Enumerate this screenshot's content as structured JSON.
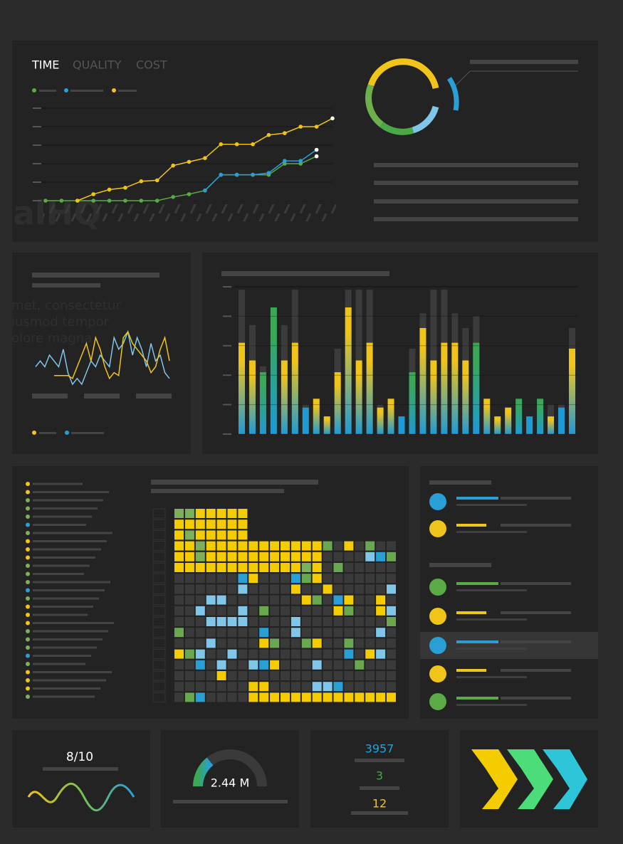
{
  "tabs": [
    "TIME",
    "QUALITY",
    "COST"
  ],
  "watermarks": [
    "alHQ",
    "met, consectetur",
    "iusmod tempor",
    "olore magna"
  ],
  "chart_data": [
    {
      "type": "line",
      "x": [
        0,
        1,
        2,
        3,
        4,
        5,
        6,
        7,
        8,
        9,
        10,
        11,
        12,
        13,
        14,
        15,
        16,
        17,
        18
      ],
      "xlim": [
        0,
        18
      ],
      "ylim": [
        0,
        5
      ],
      "yticks": [
        0,
        1,
        2,
        3,
        4,
        5
      ],
      "grid": true,
      "series": [
        {
          "color": "#5aaa46",
          "values": [
            0,
            0,
            0,
            0,
            0,
            0,
            0,
            0,
            0.2,
            0.35,
            0.55,
            1.4,
            1.4,
            1.4,
            1.4,
            2.0,
            2.0,
            2.4,
            null
          ]
        },
        {
          "color": "#2a9fd6",
          "values": [
            null,
            null,
            null,
            null,
            null,
            null,
            null,
            null,
            null,
            null,
            0.55,
            1.4,
            1.4,
            1.4,
            1.5,
            2.15,
            2.15,
            2.75,
            null
          ]
        },
        {
          "color": "#f0c419",
          "values": [
            null,
            null,
            0,
            0.35,
            0.6,
            0.7,
            1.05,
            1.1,
            1.9,
            2.1,
            2.3,
            3.05,
            3.05,
            3.05,
            3.55,
            3.65,
            4.0,
            4.0,
            4.45
          ]
        }
      ]
    },
    {
      "type": "line",
      "ylim": [
        0,
        10
      ],
      "series": [
        {
          "color": "#7fc6e8",
          "values": [
            3,
            4,
            3,
            5,
            4,
            3,
            6,
            2,
            0,
            1,
            0,
            2,
            4,
            3,
            5,
            4,
            3,
            8,
            6,
            7,
            9,
            5,
            8,
            6,
            3,
            7,
            4,
            5,
            2,
            1
          ]
        },
        {
          "color": "#f0c419",
          "values": [
            null,
            null,
            null,
            null,
            1.5,
            1.5,
            1.5,
            1.5,
            1,
            3,
            5,
            7,
            4,
            8,
            6,
            3,
            1,
            2,
            1.5,
            8,
            9,
            7,
            6,
            5,
            4,
            2,
            3,
            6,
            8,
            4
          ]
        }
      ]
    },
    {
      "type": "bar",
      "ylim": [
        0,
        5
      ],
      "yticks": [
        0,
        1,
        2,
        3,
        4,
        5
      ],
      "grid": true,
      "series": [
        {
          "values": [
            3.1,
            2.5,
            2.1,
            4.3,
            2.5,
            3.1,
            0.9,
            1.2,
            0.6,
            2.1,
            4.3,
            2.5,
            3.1,
            0.9,
            1.2,
            0.6,
            2.1,
            3.6,
            2.5,
            3.1,
            3.1,
            2.5,
            3.1,
            1.2,
            0.6,
            0.9,
            1.2,
            0.6,
            1.2,
            0.6,
            0.9,
            2.9
          ],
          "colors": [
            "#f0c419",
            "#f0c419",
            "#3aa856",
            "#3aa856",
            "#f0c419",
            "#f0c419",
            "#1e9ad6",
            "#f0c419",
            "#f0c419",
            "#f0c419",
            "#f0c419",
            "#f0c419",
            "#f0c419",
            "#f0c419",
            "#f0c419",
            "#1e9ad6",
            "#3aa856",
            "#f0c419",
            "#f0c419",
            "#f0c419",
            "#f0c419",
            "#f0c419",
            "#3aa856",
            "#f0c419",
            "#f0c419",
            "#f0c419",
            "#3aa856",
            "#1e9ad6",
            "#3aa856",
            "#f0c419",
            "#1e9ad6",
            "#f0c419"
          ]
        },
        {
          "color": "#3b3b3c",
          "values": [
            4.9,
            3.7,
            2.3,
            4.3,
            3.7,
            4.9,
            1.0,
            1.2,
            0.6,
            2.9,
            4.9,
            4.9,
            4.9,
            1.0,
            1.2,
            0.6,
            2.9,
            4.1,
            4.9,
            4.9,
            4.1,
            3.6,
            4.0,
            1.2,
            0.6,
            0.9,
            1.2,
            0.6,
            1.2,
            1.0,
            1.0,
            3.6
          ]
        }
      ]
    }
  ],
  "kpis": {
    "score": "8/10",
    "gauge": "2.44 M",
    "stats": [
      "3957",
      "3",
      "12"
    ]
  }
}
